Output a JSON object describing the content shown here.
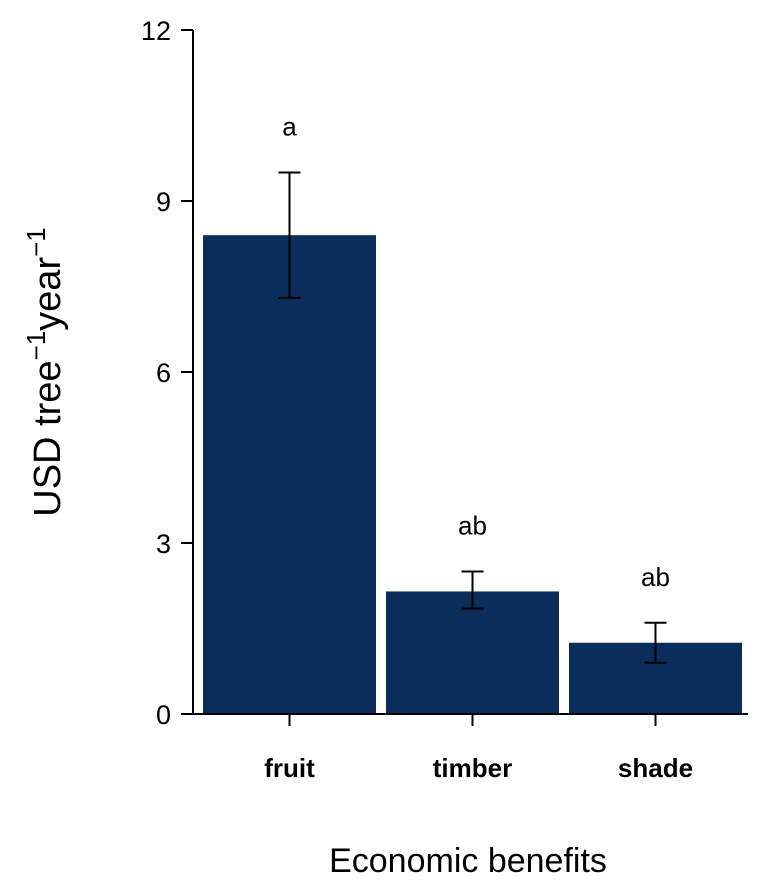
{
  "chart_data": {
    "type": "bar",
    "categories": [
      "fruit",
      "timber",
      "shade"
    ],
    "values": [
      8.4,
      2.15,
      1.25
    ],
    "error_upper": [
      9.5,
      2.5,
      1.6
    ],
    "error_lower": [
      7.3,
      1.85,
      0.9
    ],
    "significance": [
      "a",
      "ab",
      "ab"
    ],
    "xlabel": "Economic benefits",
    "ylabel": {
      "base": "USD tree",
      "sup1": "−1",
      "mid": "year",
      "sup2": "−1"
    },
    "yticks": [
      "0",
      "3",
      "6",
      "9",
      "12"
    ],
    "ylim": [
      0,
      12
    ],
    "bar_color": "#0a2d5c",
    "grid": false,
    "legend": "none"
  }
}
